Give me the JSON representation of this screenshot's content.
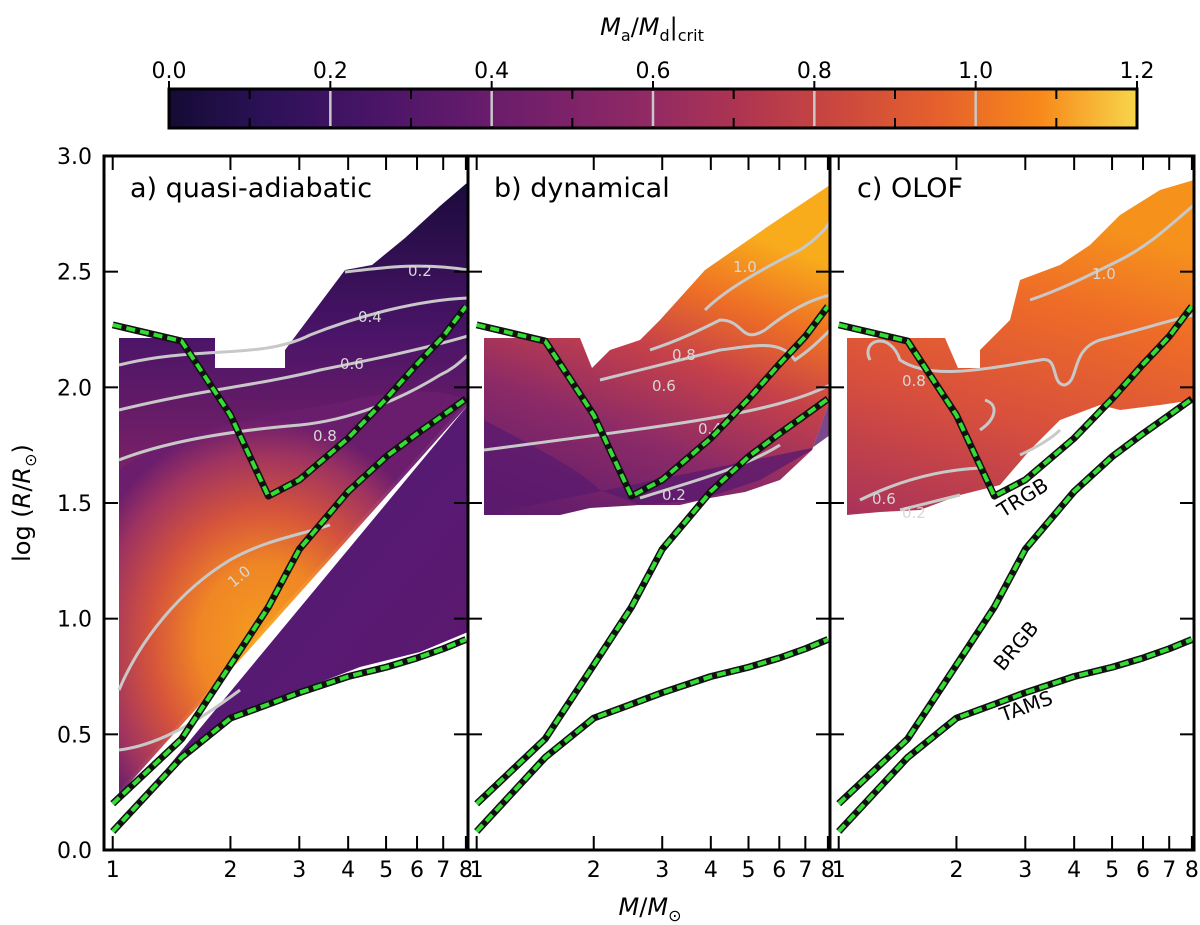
{
  "colorbar": {
    "label": "M_a/M_d|crit",
    "label_parts": {
      "Ma": "M",
      "a": "a",
      "slash": "/",
      "Md": "M",
      "d": "d",
      "crit": "crit"
    },
    "vmin": 0.0,
    "vmax": 1.2,
    "ticks": [
      "0.0",
      "0.2",
      "0.4",
      "0.6",
      "0.8",
      "1.0",
      "1.2"
    ],
    "tick_values": [
      0.0,
      0.2,
      0.4,
      0.6,
      0.8,
      1.0,
      1.2
    ],
    "minor_ticks": [
      0.1,
      0.3,
      0.5,
      0.7,
      0.9,
      1.1
    ],
    "contour_lines": [
      0.2,
      0.4,
      0.6,
      0.8,
      1.0
    ],
    "colormap": "inferno-like (plasma)"
  },
  "chart_data": [
    {
      "type": "heatmap",
      "title": "a) quasi-adiabatic",
      "xlabel": "M/M_⊙",
      "ylabel": "log(R/R_⊙)",
      "xscale": "log",
      "xlim": [
        0.95,
        8.1
      ],
      "ylim": [
        0.0,
        3.0
      ],
      "xticks": [
        "1",
        "2",
        "3",
        "4",
        "5",
        "6",
        "7",
        "8"
      ],
      "yticks": [
        "0.0",
        "0.5",
        "1.0",
        "1.5",
        "2.0",
        "2.5",
        "3.0"
      ],
      "contours": [
        {
          "level": 0.2,
          "label": "0.2"
        },
        {
          "level": 0.4,
          "label": "0.4"
        },
        {
          "level": 0.6,
          "label": "0.6"
        },
        {
          "level": 0.8,
          "label": "0.8"
        },
        {
          "level": 1.0,
          "label": "1.0"
        }
      ]
    },
    {
      "type": "heatmap",
      "title": "b) dynamical",
      "xscale": "log",
      "xlim": [
        0.95,
        8.1
      ],
      "ylim": [
        0.0,
        3.0
      ],
      "xticks": [
        "1",
        "2",
        "3",
        "4",
        "5",
        "6",
        "7",
        "8"
      ],
      "contours": [
        {
          "level": 1.0,
          "label": "1.0"
        },
        {
          "level": 0.8,
          "label": "0.8"
        },
        {
          "level": 0.6,
          "label": "0.6"
        },
        {
          "level": 0.4,
          "label": "0.4"
        },
        {
          "level": 0.2,
          "label": "0.2"
        }
      ]
    },
    {
      "type": "heatmap",
      "title": "c) OLOF",
      "xscale": "log",
      "xlim": [
        0.95,
        8.1
      ],
      "ylim": [
        0.0,
        3.0
      ],
      "xticks": [
        "1",
        "2",
        "3",
        "4",
        "5",
        "6",
        "7",
        "8"
      ],
      "contours": [
        {
          "level": 1.0,
          "label": "1.0"
        },
        {
          "level": 0.8,
          "label": "0.8"
        },
        {
          "level": 0.6,
          "label": "0.6"
        },
        {
          "level": 0.2,
          "label": "0.2"
        }
      ],
      "annotations": [
        "TRGB",
        "BRGB",
        "TAMS"
      ]
    }
  ],
  "boundaries": {
    "TRGB": {
      "M": [
        1.0,
        1.5,
        2.0,
        2.5,
        3.0,
        4.0,
        5.0,
        6.0,
        7.0,
        8.0
      ],
      "logR": [
        2.27,
        2.2,
        1.88,
        1.53,
        1.6,
        1.78,
        1.95,
        2.1,
        2.22,
        2.35
      ]
    },
    "BRGB": {
      "M": [
        1.0,
        1.5,
        2.0,
        2.5,
        3.0,
        4.0,
        5.0,
        6.0,
        7.0,
        8.0
      ],
      "logR": [
        0.2,
        0.48,
        0.8,
        1.05,
        1.3,
        1.55,
        1.7,
        1.8,
        1.88,
        1.95
      ]
    },
    "TAMS": {
      "M": [
        1.0,
        1.5,
        2.0,
        2.5,
        3.0,
        4.0,
        5.0,
        6.0,
        7.0,
        8.0
      ],
      "logR": [
        0.08,
        0.4,
        0.57,
        0.63,
        0.68,
        0.75,
        0.79,
        0.83,
        0.87,
        0.91
      ]
    }
  },
  "colors": {
    "boundary_fill": "#33dd33",
    "boundary_edge": "#111111",
    "contour": "#c8c8c8"
  }
}
